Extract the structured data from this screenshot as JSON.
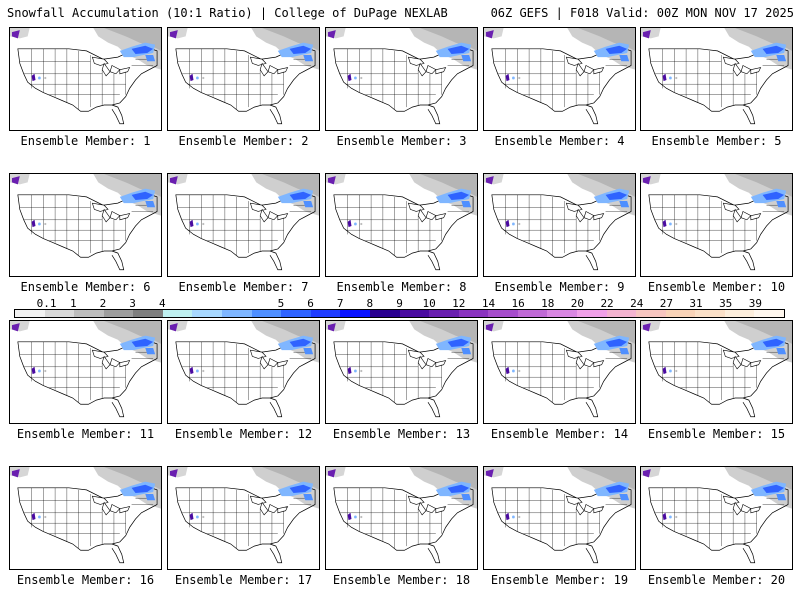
{
  "header": {
    "left": "Snowfall Accumulation (10:1 Ratio) | College of DuPage NEXLAB",
    "right": "06Z GEFS | F018 Valid: 00Z MON NOV 17 2025"
  },
  "members": [
    {
      "label": "Ensemble Member: 1"
    },
    {
      "label": "Ensemble Member: 2"
    },
    {
      "label": "Ensemble Member: 3"
    },
    {
      "label": "Ensemble Member: 4"
    },
    {
      "label": "Ensemble Member: 5"
    },
    {
      "label": "Ensemble Member: 6"
    },
    {
      "label": "Ensemble Member: 7"
    },
    {
      "label": "Ensemble Member: 8"
    },
    {
      "label": "Ensemble Member: 9"
    },
    {
      "label": "Ensemble Member: 10"
    },
    {
      "label": "Ensemble Member: 11"
    },
    {
      "label": "Ensemble Member: 12"
    },
    {
      "label": "Ensemble Member: 13"
    },
    {
      "label": "Ensemble Member: 14"
    },
    {
      "label": "Ensemble Member: 15"
    },
    {
      "label": "Ensemble Member: 16"
    },
    {
      "label": "Ensemble Member: 17"
    },
    {
      "label": "Ensemble Member: 18"
    },
    {
      "label": "Ensemble Member: 19"
    },
    {
      "label": "Ensemble Member: 20"
    }
  ],
  "colorbar": {
    "labels": [
      "0.1",
      "1",
      "2",
      "3",
      "4",
      "5",
      "6",
      "7",
      "8",
      "9",
      "10",
      "12",
      "14",
      "16",
      "18",
      "20",
      "22",
      "24",
      "27",
      "31",
      "35",
      "39"
    ],
    "colors": [
      "#f2f2f2",
      "#d9d9d9",
      "#bdbdbd",
      "#9e9e9e",
      "#7f7f7f",
      "#bff0f0",
      "#a8d8ff",
      "#7fb6ff",
      "#4f8fff",
      "#2f63ff",
      "#1f3cff",
      "#0a12ff",
      "#2a0090",
      "#4a0ba0",
      "#6a1fb0",
      "#8a33c0",
      "#a64dcc",
      "#c06ad6",
      "#d987e2",
      "#f0a0e8",
      "#f4b3d0",
      "#f7c5c0",
      "#f9d3b8",
      "#fbe0c8",
      "#fdeedc",
      "#fff7ee"
    ]
  }
}
